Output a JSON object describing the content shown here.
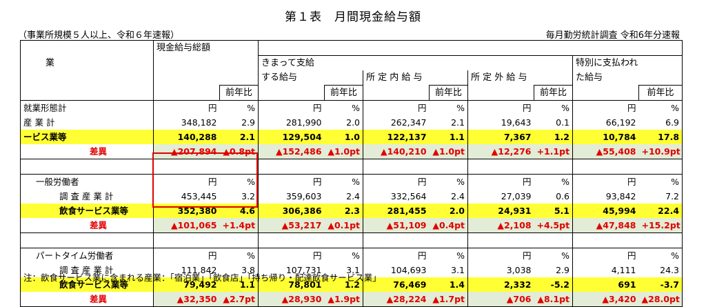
{
  "title": "第１表　月間現金給与額",
  "subtitle_left": "（事業所規模５人以上、令和６年速報）",
  "subtitle_right": "毎月勤労統計調査 令和6年分速報",
  "headers": {
    "industry": "業",
    "total": "現金給与総額",
    "regular_1": "きまって支給",
    "regular_2": "する給与",
    "scheduled": "所 定 内 給 与",
    "overtime": "所 定 外 給 与",
    "special_1": "特別に支払われ",
    "special_2": "た給与",
    "prev": "前年比"
  },
  "units": {
    "yen": "円",
    "pct": "%"
  },
  "sections": [
    {
      "label": "就業形態計",
      "rows": [
        {
          "label": "産 業 計",
          "values": [
            "348,182",
            "2.9",
            "281,990",
            "2.0",
            "262,347",
            "2.1",
            "19,643",
            "0.1",
            "66,192",
            "6.9"
          ]
        },
        {
          "label": "ービス業等",
          "values": [
            "140,288",
            "2.1",
            "129,504",
            "1.0",
            "122,137",
            "1.1",
            "7,367",
            "1.2",
            "10,784",
            "17.8"
          ]
        },
        {
          "label": "差異",
          "values": [
            "▲207,894",
            "▲0.8pt",
            "▲152,486",
            "▲1.0pt",
            "▲140,210",
            "▲1.0pt",
            "▲12,276",
            "+1.1pt",
            "▲55,408",
            "+10.9pt"
          ]
        }
      ]
    },
    {
      "label": "一般労働者",
      "rows": [
        {
          "label": "調 査 産 業 計",
          "values": [
            "453,445",
            "3.2",
            "359,603",
            "2.4",
            "332,564",
            "2.4",
            "27,039",
            "0.6",
            "93,842",
            "7.2"
          ]
        },
        {
          "label": "飲食サービス業等",
          "values": [
            "352,380",
            "4.6",
            "306,386",
            "2.3",
            "281,455",
            "2.0",
            "24,931",
            "5.1",
            "45,994",
            "22.4"
          ]
        },
        {
          "label": "差異",
          "values": [
            "▲101,065",
            "+1.4pt",
            "▲53,217",
            "▲0.1pt",
            "▲51,109",
            "▲0.4pt",
            "▲2,108",
            "+4.5pt",
            "▲47,848",
            "+15.2pt"
          ]
        }
      ]
    },
    {
      "label": "パートタイム労働者",
      "rows": [
        {
          "label": "調 査 産 業 計",
          "values": [
            "111,842",
            "3.8",
            "107,731",
            "3.1",
            "104,693",
            "3.1",
            "3,038",
            "2.9",
            "4,111",
            "24.3"
          ]
        },
        {
          "label": "飲食サービス業等",
          "values": [
            "79,492",
            "1.1",
            "78,801",
            "1.2",
            "76,469",
            "1.4",
            "2,332",
            "-5.2",
            "691",
            "-3.7"
          ]
        },
        {
          "label": "差異",
          "values": [
            "▲32,350",
            "▲2.7pt",
            "▲28,930",
            "▲1.9pt",
            "▲28,224",
            "▲1.7pt",
            "▲706",
            "▲8.1pt",
            "▲3,420",
            "▲28.0pt"
          ]
        }
      ]
    }
  ],
  "note": "注：飲食サービス業に含まれる産業：「宿泊業」「飲食店」「持ち帰り・配達飲食サービス業」"
}
